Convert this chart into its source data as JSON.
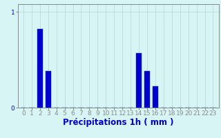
{
  "hours": [
    0,
    1,
    2,
    3,
    4,
    5,
    6,
    7,
    8,
    9,
    10,
    11,
    12,
    13,
    14,
    15,
    16,
    17,
    18,
    19,
    20,
    21,
    22,
    23
  ],
  "values": [
    0,
    0,
    0.82,
    0.38,
    0,
    0,
    0,
    0,
    0,
    0,
    0,
    0,
    0,
    0,
    0.57,
    0.38,
    0.22,
    0,
    0,
    0,
    0,
    0,
    0,
    0
  ],
  "bar_color": "#0000cc",
  "bar_edge_color": "#0033cc",
  "background_color": "#d8f5f5",
  "grid_color": "#b8d4d4",
  "axis_color": "#888888",
  "text_color": "#0000cc",
  "xlabel": "Précipitations 1h ( mm )",
  "ylim": [
    0,
    1.08
  ],
  "yticks": [
    0,
    1
  ],
  "xlabel_fontsize": 8.5,
  "tick_fontsize": 6.5
}
